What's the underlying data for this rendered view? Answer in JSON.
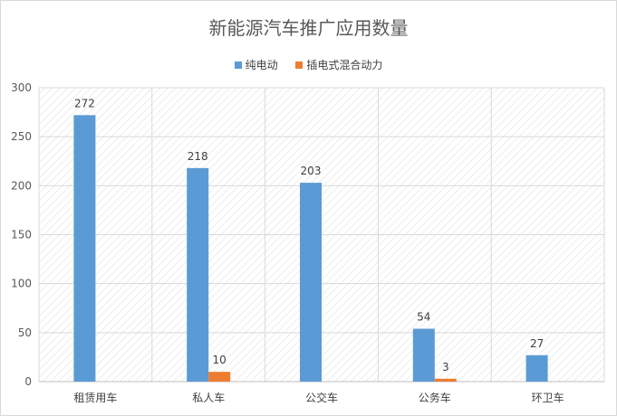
{
  "chart_data": {
    "type": "bar",
    "title": "新能源汽车推广应用数量",
    "categories": [
      "租赁用车",
      "私人车",
      "公交车",
      "公务车",
      "环卫车"
    ],
    "series": [
      {
        "name": "纯电动",
        "color": "#5B9BD5",
        "values": [
          272,
          218,
          203,
          54,
          27
        ]
      },
      {
        "name": "插电式混合动力",
        "color": "#ED7D31",
        "values": [
          null,
          10,
          null,
          3,
          null
        ]
      }
    ],
    "ylim": [
      0,
      300
    ],
    "yticks": [
      0,
      50,
      100,
      150,
      200,
      250,
      300
    ],
    "grid": true,
    "legend_position": "top"
  }
}
